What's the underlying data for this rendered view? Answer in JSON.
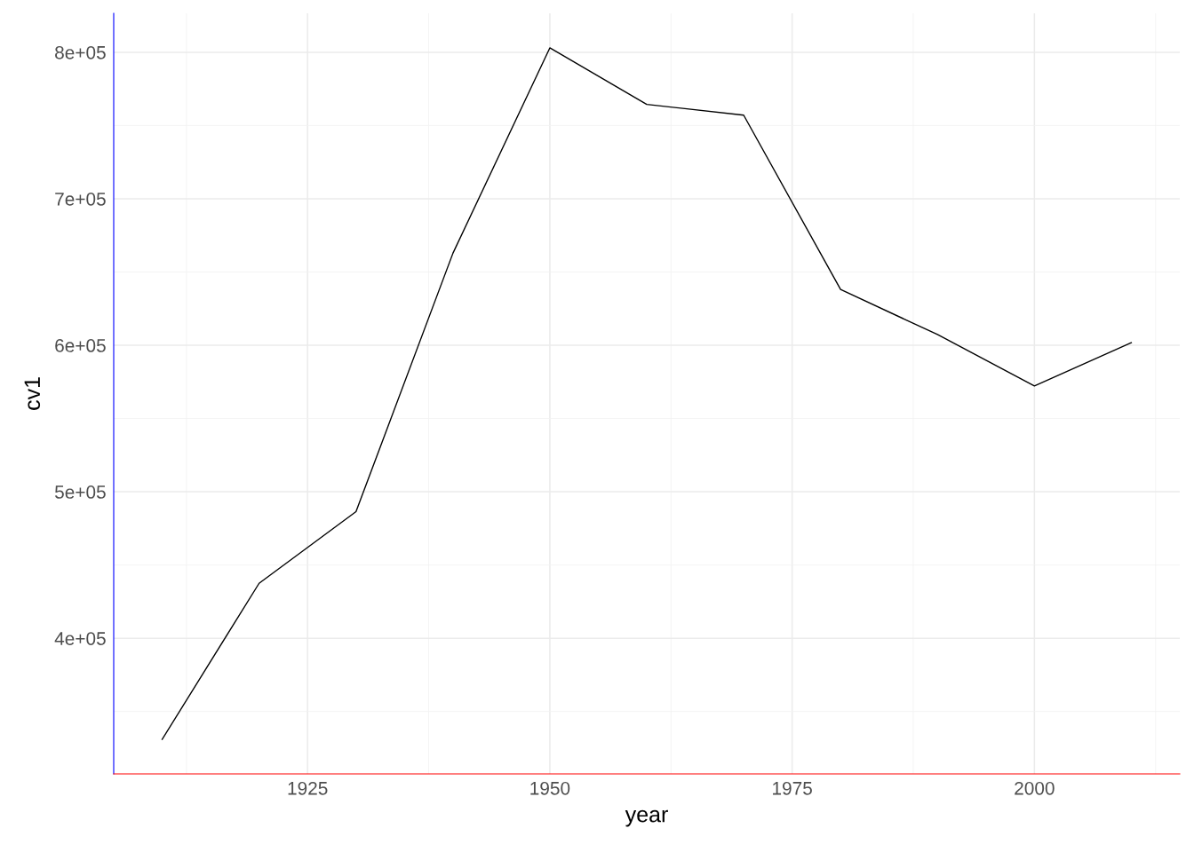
{
  "chart_data": {
    "type": "line",
    "xlabel": "year",
    "ylabel": "cv1",
    "x": [
      1910,
      1920,
      1930,
      1940,
      1950,
      1960,
      1970,
      1980,
      1990,
      2000,
      2010
    ],
    "series": [
      {
        "color": "#000000",
        "values": [
          331000,
          437500,
          486400,
          662800,
          803000,
          764400,
          757100,
          638100,
          607300,
          572200,
          601800
        ]
      }
    ],
    "xlim": [
      1905,
      2015
    ],
    "xticks": [
      1925,
      1950,
      1975,
      2000
    ],
    "ylim": [
      307400,
      826600
    ],
    "yticks": [
      {
        "value": 400000,
        "label": "4e+05"
      },
      {
        "value": 500000,
        "label": "5e+05"
      },
      {
        "value": 600000,
        "label": "6e+05"
      },
      {
        "value": 700000,
        "label": "7e+05"
      },
      {
        "value": 800000,
        "label": "8e+05"
      }
    ],
    "grid": true,
    "marker": "none",
    "line_style": "solid"
  }
}
